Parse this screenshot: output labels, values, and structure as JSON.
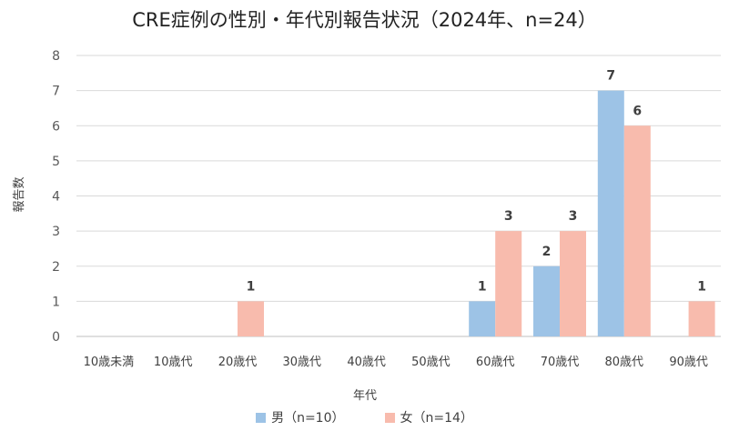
{
  "chart_data": {
    "type": "bar",
    "title": "CRE症例の性別・年代別報告状況（2024年、n=24）",
    "xlabel": "年代",
    "ylabel": "報告数",
    "ylim": [
      0,
      8
    ],
    "yticks": [
      0,
      1,
      2,
      3,
      4,
      5,
      6,
      7,
      8
    ],
    "categories": [
      "10歳未満",
      "10歳代",
      "20歳代",
      "30歳代",
      "40歳代",
      "50歳代",
      "60歳代",
      "70歳代",
      "80歳代",
      "90歳代"
    ],
    "series": [
      {
        "name": "男（n=10）",
        "color": "#9dc3e6",
        "values": [
          0,
          0,
          0,
          0,
          0,
          0,
          1,
          2,
          7,
          0
        ]
      },
      {
        "name": "女（n=14）",
        "color": "#f8bbad",
        "values": [
          0,
          0,
          1,
          0,
          0,
          0,
          3,
          3,
          6,
          1
        ]
      }
    ],
    "grid": true,
    "legend_position": "bottom"
  }
}
